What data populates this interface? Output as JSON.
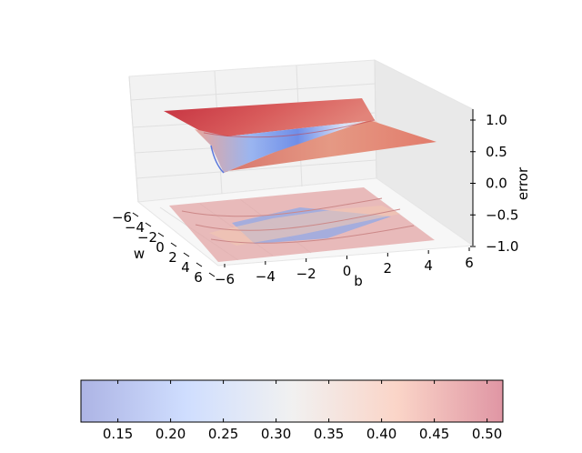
{
  "chart_data": {
    "type": "surface3d",
    "x": {
      "label": "b",
      "ticks": [
        "−6",
        "−4",
        "−2",
        "0",
        "2",
        "4",
        "6"
      ],
      "range": [
        -6,
        6
      ]
    },
    "y": {
      "label": "w",
      "ticks": [
        "−6",
        "−4",
        "−2",
        "0",
        "2",
        "4",
        "6"
      ],
      "range": [
        -6,
        6
      ]
    },
    "z": {
      "label": "error",
      "ticks": [
        "1.0",
        "0.5",
        "0.0",
        "−0.5",
        "−1.0"
      ],
      "range": [
        -1.0,
        1.0
      ]
    },
    "surface": {
      "z_max": 0.52,
      "z_min": 0.12,
      "plateau_high": 0.51,
      "plateau_low": 0.45,
      "valley_min": 0.12
    },
    "contour_projection": {
      "plane": "z = -1.0",
      "alpha": 0.35
    },
    "colormap": "coolwarm",
    "colorbar": {
      "min": 0.115,
      "max": 0.515,
      "ticks": [
        "0.15",
        "0.20",
        "0.25",
        "0.30",
        "0.35",
        "0.40",
        "0.45",
        "0.50"
      ],
      "tick_values": [
        0.15,
        0.2,
        0.25,
        0.3,
        0.35,
        0.4,
        0.45,
        0.5
      ],
      "orientation": "horizontal"
    },
    "grid": true
  }
}
